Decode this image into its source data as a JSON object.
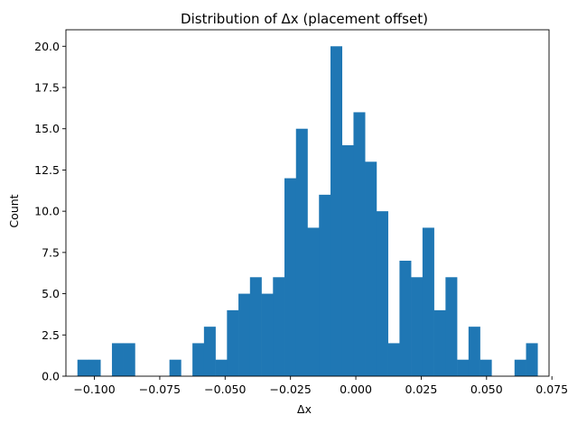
{
  "chart_data": {
    "type": "bar",
    "title": "Distribution of Δx (placement offset)",
    "xlabel": "Δx",
    "ylabel": "Count",
    "bin_edges": [
      -0.1065,
      -0.1021,
      -0.0977,
      -0.0933,
      -0.0889,
      -0.0845,
      -0.0801,
      -0.0757,
      -0.0713,
      -0.0669,
      -0.0625,
      -0.0581,
      -0.0537,
      -0.0493,
      -0.0449,
      -0.0405,
      -0.0361,
      -0.0317,
      -0.0273,
      -0.0229,
      -0.0185,
      -0.0141,
      -0.0097,
      -0.0053,
      -0.0009,
      0.0035,
      0.0079,
      0.0123,
      0.0167,
      0.0211,
      0.0255,
      0.0299,
      0.0343,
      0.0387,
      0.0431,
      0.0475,
      0.0519,
      0.0563,
      0.0607,
      0.0651,
      0.0695
    ],
    "values": [
      1,
      1,
      0,
      2,
      2,
      0,
      0,
      0,
      1,
      0,
      2,
      3,
      1,
      4,
      5,
      6,
      5,
      6,
      12,
      15,
      9,
      11,
      20,
      14,
      16,
      13,
      10,
      2,
      7,
      6,
      9,
      4,
      6,
      1,
      3,
      1,
      0,
      0,
      1,
      2
    ],
    "xlim": [
      -0.1109,
      0.0739
    ],
    "ylim": [
      0,
      21
    ],
    "x_ticks": [
      -0.1,
      -0.075,
      -0.05,
      -0.025,
      0.0,
      0.025,
      0.05,
      0.075
    ],
    "x_tick_labels": [
      "−0.100",
      "−0.075",
      "−0.050",
      "−0.025",
      "0.000",
      "0.025",
      "0.050",
      "0.075"
    ],
    "y_ticks": [
      0,
      2.5,
      5,
      7.5,
      10,
      12.5,
      15,
      17.5,
      20
    ],
    "y_tick_labels": [
      "0.0",
      "2.5",
      "5.0",
      "7.5",
      "10.0",
      "12.5",
      "15.0",
      "17.5",
      "20.0"
    ],
    "bar_color": "#1f77b4",
    "grid": false,
    "legend": "none"
  }
}
